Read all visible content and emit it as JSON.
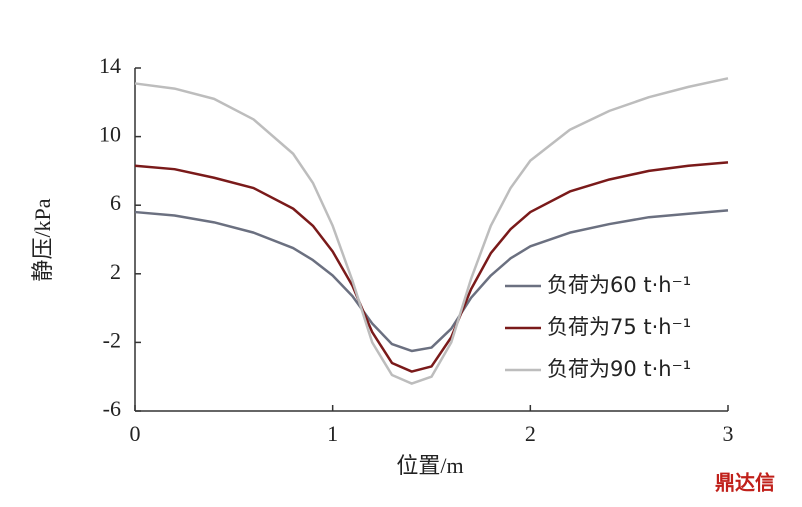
{
  "chart_data": {
    "type": "line",
    "y_label": "静压/kPa",
    "x_label": "位置/m",
    "x": [
      0,
      0.2,
      0.4,
      0.6,
      0.8,
      0.9,
      1.0,
      1.1,
      1.2,
      1.3,
      1.4,
      1.5,
      1.6,
      1.7,
      1.8,
      1.9,
      2.0,
      2.2,
      2.4,
      2.6,
      2.8,
      3.0
    ],
    "series": [
      {
        "name": "负荷为60 t·h⁻¹",
        "color": "#6b7080",
        "values": [
          5.6,
          5.4,
          5.0,
          4.4,
          3.5,
          2.8,
          1.9,
          0.7,
          -0.9,
          -2.1,
          -2.5,
          -2.3,
          -1.2,
          0.6,
          1.9,
          2.9,
          3.6,
          4.4,
          4.9,
          5.3,
          5.5,
          5.7
        ]
      },
      {
        "name": "负荷为75 t·h⁻¹",
        "color": "#7a1a1a",
        "values": [
          8.3,
          8.1,
          7.6,
          7.0,
          5.8,
          4.8,
          3.3,
          1.3,
          -1.4,
          -3.2,
          -3.7,
          -3.4,
          -1.7,
          1.1,
          3.2,
          4.6,
          5.6,
          6.8,
          7.5,
          8.0,
          8.3,
          8.5
        ]
      },
      {
        "name": "负荷为90 t·h⁻¹",
        "color": "#bdbdbd",
        "values": [
          13.1,
          12.8,
          12.2,
          11.0,
          9.0,
          7.3,
          4.8,
          1.6,
          -2.0,
          -3.9,
          -4.4,
          -4.0,
          -2.0,
          1.7,
          4.8,
          7.0,
          8.6,
          10.4,
          11.5,
          12.3,
          12.9,
          13.4
        ]
      }
    ],
    "xlim": [
      0,
      3
    ],
    "xticks": [
      0,
      1,
      2,
      3
    ],
    "ylim": [
      -6,
      14
    ],
    "yticks": [
      -6,
      -2,
      2,
      6,
      10,
      14
    ],
    "legend": "right",
    "watermark": "鼎达信"
  }
}
